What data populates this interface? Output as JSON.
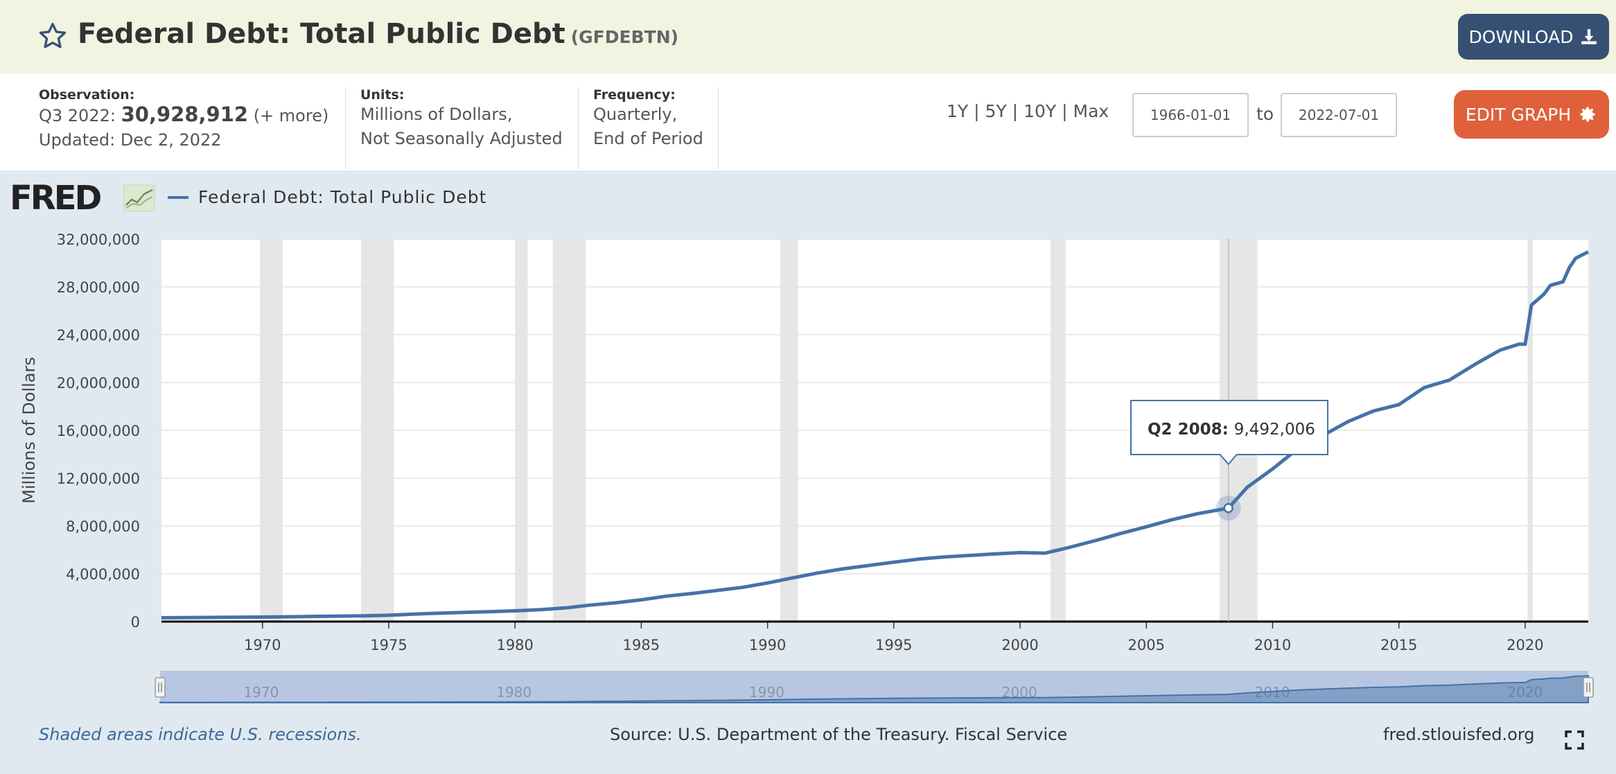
{
  "header": {
    "title": "Federal Debt: Total Public Debt",
    "series_id": "(GFDEBTN)",
    "download_label": "DOWNLOAD",
    "icons": {
      "favorite": "star-icon",
      "download": "download-icon"
    }
  },
  "info": {
    "observation_label": "Observation:",
    "observation_period": "Q3 2022:",
    "observation_value": "30,928,912",
    "observation_more": "(+ more)",
    "updated": "Updated: Dec 2, 2022",
    "units_label": "Units:",
    "units_line1": "Millions of Dollars,",
    "units_line2": "Not Seasonally Adjusted",
    "frequency_label": "Frequency:",
    "frequency_line1": "Quarterly,",
    "frequency_line2": "End of Period"
  },
  "controls": {
    "range_1y": "1Y",
    "range_5y": "5Y",
    "range_10y": "10Y",
    "range_max": "Max",
    "separator": "|",
    "start_date": "1966-01-01",
    "to_label": "to",
    "end_date": "2022-07-01",
    "edit_label": "EDIT GRAPH",
    "edit_icon": "gear-icon"
  },
  "branding": {
    "logo": "FRED"
  },
  "footer": {
    "note": "Shaded areas indicate U.S. recessions.",
    "source": "Source: U.S. Department of the Treasury. Fiscal Service",
    "site": "fred.stlouisfed.org",
    "fullscreen_icon": "fullscreen-icon"
  },
  "chart_data": {
    "type": "line",
    "series": [
      {
        "name": "Federal Debt: Total Public Debt",
        "color": "#4572a7",
        "points": [
          [
            1966.0,
            320000
          ],
          [
            1967.0,
            330000
          ],
          [
            1968.0,
            350000
          ],
          [
            1969.0,
            360000
          ],
          [
            1970.0,
            375000
          ],
          [
            1971.0,
            400000
          ],
          [
            1972.0,
            430000
          ],
          [
            1973.0,
            460000
          ],
          [
            1974.0,
            480000
          ],
          [
            1975.0,
            530000
          ],
          [
            1976.0,
            620000
          ],
          [
            1977.0,
            700000
          ],
          [
            1978.0,
            770000
          ],
          [
            1979.0,
            830000
          ],
          [
            1980.0,
            900000
          ],
          [
            1981.0,
            990000
          ],
          [
            1982.0,
            1140000
          ],
          [
            1983.0,
            1380000
          ],
          [
            1984.0,
            1570000
          ],
          [
            1985.0,
            1820000
          ],
          [
            1986.0,
            2130000
          ],
          [
            1987.0,
            2350000
          ],
          [
            1988.0,
            2600000
          ],
          [
            1989.0,
            2860000
          ],
          [
            1990.0,
            3230000
          ],
          [
            1991.0,
            3660000
          ],
          [
            1992.0,
            4070000
          ],
          [
            1993.0,
            4410000
          ],
          [
            1994.0,
            4690000
          ],
          [
            1995.0,
            4970000
          ],
          [
            1996.0,
            5230000
          ],
          [
            1997.0,
            5410000
          ],
          [
            1998.0,
            5530000
          ],
          [
            1999.0,
            5660000
          ],
          [
            2000.0,
            5770000
          ],
          [
            2001.0,
            5730000
          ],
          [
            2002.0,
            6230000
          ],
          [
            2003.0,
            6780000
          ],
          [
            2004.0,
            7380000
          ],
          [
            2005.0,
            7930000
          ],
          [
            2006.0,
            8510000
          ],
          [
            2007.0,
            9010000
          ],
          [
            2008.25,
            9492006
          ],
          [
            2009.0,
            11240000
          ],
          [
            2010.0,
            12770000
          ],
          [
            2011.0,
            14460000
          ],
          [
            2012.0,
            15580000
          ],
          [
            2013.0,
            16740000
          ],
          [
            2014.0,
            17620000
          ],
          [
            2015.0,
            18150000
          ],
          [
            2016.0,
            19570000
          ],
          [
            2017.0,
            20200000
          ],
          [
            2018.0,
            21500000
          ],
          [
            2019.0,
            22700000
          ],
          [
            2019.75,
            23200000
          ],
          [
            2020.0,
            23200000
          ],
          [
            2020.25,
            26480000
          ],
          [
            2020.75,
            27400000
          ],
          [
            2021.0,
            28130000
          ],
          [
            2021.5,
            28430000
          ],
          [
            2021.75,
            29620000
          ],
          [
            2022.0,
            30400000
          ],
          [
            2022.5,
            30928912
          ]
        ]
      }
    ],
    "x_ticks": [
      1970,
      1975,
      1980,
      1985,
      1990,
      1995,
      2000,
      2005,
      2010,
      2015,
      2020
    ],
    "y_ticks": [
      0,
      4000000,
      8000000,
      12000000,
      16000000,
      20000000,
      24000000,
      28000000,
      32000000
    ],
    "y_tick_labels": [
      "0",
      "4,000,000",
      "8,000,000",
      "12,000,000",
      "16,000,000",
      "20,000,000",
      "24,000,000",
      "28,000,000",
      "32,000,000"
    ],
    "xlim": [
      1966.0,
      2022.5
    ],
    "ylim": [
      0,
      32000000
    ],
    "ylabel": "Millions of Dollars",
    "recessions": [
      [
        1969.9,
        1970.8
      ],
      [
        1973.9,
        1975.2
      ],
      [
        1980.0,
        1980.5
      ],
      [
        1981.5,
        1982.8
      ],
      [
        1990.5,
        1991.2
      ],
      [
        2001.2,
        2001.8
      ],
      [
        2007.9,
        2009.4
      ],
      [
        2020.1,
        2020.3
      ]
    ],
    "tooltip": {
      "label": "Q2 2008:",
      "value": "9,492,006",
      "x": 2008.25,
      "y": 9492006
    },
    "navigator": {
      "labels": [
        "1970",
        "1980",
        "1990",
        "2000",
        "2010",
        "2020"
      ],
      "label_years": [
        1970,
        1980,
        1990,
        2000,
        2010,
        2020
      ]
    },
    "grid": true,
    "legend": "top-left"
  }
}
